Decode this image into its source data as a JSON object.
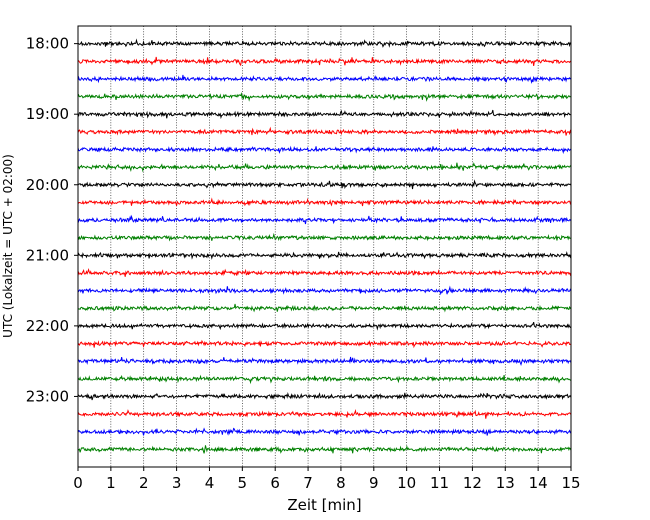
{
  "chart_data": {
    "type": "line",
    "title": "",
    "xlabel": "Zeit  [min]",
    "ylabel": "UTC (Lokalzeit = UTC + 02:00)",
    "xlim": [
      0,
      15
    ],
    "x_ticks": [
      "0",
      "1",
      "2",
      "3",
      "4",
      "5",
      "6",
      "7",
      "8",
      "9",
      "10",
      "11",
      "12",
      "13",
      "14",
      "15"
    ],
    "y_ticks": [
      "18:00",
      "19:00",
      "20:00",
      "21:00",
      "22:00",
      "23:00"
    ],
    "ylim": [
      "17:45",
      "24:00"
    ],
    "grid": "vertical dotted at each minute",
    "trace_colors": [
      "#000000",
      "#ff0000",
      "#0000ff",
      "#008000"
    ],
    "traces_start": [
      "18:00",
      "18:15",
      "18:30",
      "18:45",
      "19:00",
      "19:15",
      "19:30",
      "19:45",
      "20:00",
      "20:15",
      "20:30",
      "20:45",
      "21:00",
      "21:15",
      "21:30",
      "21:45",
      "22:00",
      "22:15",
      "22:30",
      "22:45",
      "23:00",
      "23:15",
      "23:30",
      "23:45"
    ],
    "trace_duration_min": 15,
    "legend": "none"
  }
}
